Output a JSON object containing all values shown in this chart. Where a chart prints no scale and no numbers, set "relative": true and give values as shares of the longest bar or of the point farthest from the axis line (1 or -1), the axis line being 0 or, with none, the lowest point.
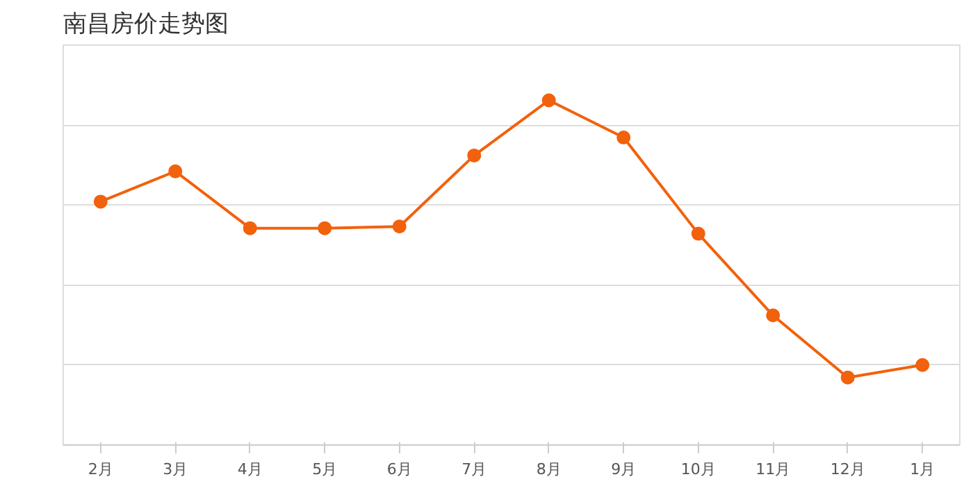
{
  "chart_data": {
    "type": "line",
    "title": "南昌房价走势图",
    "relative": true,
    "categories": [
      "2月",
      "3月",
      "4月",
      "5月",
      "6月",
      "7月",
      "8月",
      "9月",
      "10月",
      "11月",
      "12月",
      "1月"
    ],
    "series": [
      {
        "color": "#f2610c",
        "values": [
          0.706,
          0.794,
          0.629,
          0.629,
          0.634,
          0.84,
          1,
          0.892,
          0.613,
          0.376,
          0.196,
          0.232
        ]
      }
    ],
    "grid": "y",
    "marker": "circle",
    "line_style": "solid"
  }
}
